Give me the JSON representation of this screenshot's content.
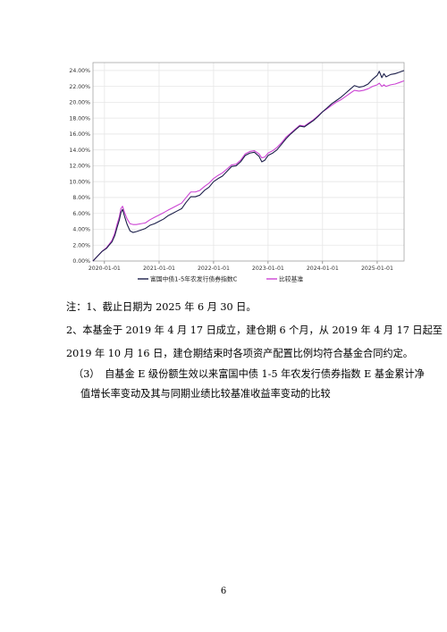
{
  "chart_data": {
    "type": "line",
    "title": "",
    "xlabel": "",
    "ylabel": "",
    "x_ticks": [
      "2020-01-01",
      "2021-01-01",
      "2022-01-01",
      "2023-01-01",
      "2024-01-01",
      "2025-01-01"
    ],
    "y_ticks": [
      "0.00%",
      "2.00%",
      "4.00%",
      "6.00%",
      "8.00%",
      "10.00%",
      "12.00%",
      "14.00%",
      "16.00%",
      "18.00%",
      "20.00%",
      "22.00%",
      "24.00%"
    ],
    "xlim": [
      "2019-10-16",
      "2025-06-30"
    ],
    "ylim": [
      0,
      25
    ],
    "grid": true,
    "legend_position": "bottom",
    "series": [
      {
        "name": "富国中债1-5年农发行债券指数C",
        "color": "#1c1f4a",
        "x": [
          "2019-10-16",
          "2019-11-15",
          "2019-12-15",
          "2020-01-15",
          "2020-02-01",
          "2020-02-20",
          "2020-03-10",
          "2020-03-25",
          "2020-04-10",
          "2020-04-20",
          "2020-05-01",
          "2020-05-15",
          "2020-06-01",
          "2020-06-20",
          "2020-07-10",
          "2020-08-01",
          "2020-09-01",
          "2020-10-01",
          "2020-11-01",
          "2020-12-01",
          "2021-01-01",
          "2021-02-01",
          "2021-03-01",
          "2021-04-01",
          "2021-05-01",
          "2021-06-01",
          "2021-07-01",
          "2021-08-01",
          "2021-09-01",
          "2021-10-01",
          "2021-11-01",
          "2021-12-01",
          "2022-01-01",
          "2022-02-01",
          "2022-03-01",
          "2022-04-01",
          "2022-05-01",
          "2022-06-01",
          "2022-07-01",
          "2022-08-01",
          "2022-09-01",
          "2022-10-01",
          "2022-11-01",
          "2022-11-20",
          "2022-12-10",
          "2023-01-01",
          "2023-02-01",
          "2023-03-01",
          "2023-04-01",
          "2023-05-01",
          "2023-06-01",
          "2023-07-01",
          "2023-08-01",
          "2023-09-01",
          "2023-10-01",
          "2023-11-01",
          "2023-12-01",
          "2024-01-01",
          "2024-02-01",
          "2024-03-01",
          "2024-04-01",
          "2024-05-01",
          "2024-06-01",
          "2024-07-01",
          "2024-08-01",
          "2024-09-01",
          "2024-10-01",
          "2024-11-01",
          "2024-12-01",
          "2025-01-01",
          "2025-01-15",
          "2025-02-01",
          "2025-02-15",
          "2025-03-01",
          "2025-04-01",
          "2025-05-01",
          "2025-06-01",
          "2025-06-30"
        ],
        "values": [
          0.0,
          0.6,
          1.2,
          1.6,
          2.0,
          2.4,
          3.2,
          4.2,
          5.2,
          6.1,
          6.5,
          5.6,
          4.6,
          3.8,
          3.6,
          3.7,
          3.9,
          4.1,
          4.5,
          4.7,
          5.0,
          5.3,
          5.7,
          6.0,
          6.3,
          6.6,
          7.4,
          8.1,
          8.1,
          8.3,
          8.9,
          9.3,
          10.0,
          10.4,
          10.7,
          11.3,
          11.9,
          12.0,
          12.5,
          13.3,
          13.6,
          13.7,
          13.2,
          12.5,
          12.7,
          13.3,
          13.6,
          14.0,
          14.7,
          15.4,
          16.0,
          16.5,
          17.0,
          16.9,
          17.3,
          17.7,
          18.2,
          18.8,
          19.3,
          19.8,
          20.2,
          20.6,
          21.1,
          21.6,
          22.1,
          21.9,
          22.0,
          22.3,
          22.9,
          23.4,
          23.9,
          23.1,
          23.6,
          23.2,
          23.5,
          23.6,
          23.8,
          24.0
        ]
      },
      {
        "name": "比较基准",
        "color": "#cc44d4",
        "x": [
          "2019-10-16",
          "2019-11-15",
          "2019-12-15",
          "2020-01-15",
          "2020-02-01",
          "2020-02-20",
          "2020-03-10",
          "2020-03-25",
          "2020-04-10",
          "2020-04-20",
          "2020-05-01",
          "2020-05-15",
          "2020-06-01",
          "2020-06-20",
          "2020-07-10",
          "2020-08-01",
          "2020-09-01",
          "2020-10-01",
          "2020-11-01",
          "2020-12-01",
          "2021-01-01",
          "2021-02-01",
          "2021-03-01",
          "2021-04-01",
          "2021-05-01",
          "2021-06-01",
          "2021-07-01",
          "2021-08-01",
          "2021-09-01",
          "2021-10-01",
          "2021-11-01",
          "2021-12-01",
          "2022-01-01",
          "2022-02-01",
          "2022-03-01",
          "2022-04-01",
          "2022-05-01",
          "2022-06-01",
          "2022-07-01",
          "2022-08-01",
          "2022-09-01",
          "2022-10-01",
          "2022-11-01",
          "2022-11-20",
          "2022-12-10",
          "2023-01-01",
          "2023-02-01",
          "2023-03-01",
          "2023-04-01",
          "2023-05-01",
          "2023-06-01",
          "2023-07-01",
          "2023-08-01",
          "2023-09-01",
          "2023-10-01",
          "2023-11-01",
          "2023-12-01",
          "2024-01-01",
          "2024-02-01",
          "2024-03-01",
          "2024-04-01",
          "2024-05-01",
          "2024-06-01",
          "2024-07-01",
          "2024-08-01",
          "2024-09-01",
          "2024-10-01",
          "2024-11-01",
          "2024-12-01",
          "2025-01-01",
          "2025-01-15",
          "2025-02-01",
          "2025-02-15",
          "2025-03-01",
          "2025-04-01",
          "2025-05-01",
          "2025-06-01",
          "2025-06-30"
        ],
        "values": [
          0.0,
          0.6,
          1.2,
          1.7,
          2.1,
          2.6,
          3.5,
          4.6,
          5.6,
          6.6,
          6.9,
          6.1,
          5.3,
          4.7,
          4.6,
          4.6,
          4.7,
          4.8,
          5.2,
          5.5,
          5.8,
          6.1,
          6.4,
          6.7,
          7.0,
          7.3,
          8.0,
          8.7,
          8.7,
          8.9,
          9.4,
          9.8,
          10.4,
          10.8,
          11.1,
          11.6,
          12.1,
          12.2,
          12.7,
          13.5,
          13.8,
          13.9,
          13.5,
          13.0,
          13.1,
          13.6,
          13.9,
          14.3,
          14.9,
          15.6,
          16.1,
          16.6,
          17.1,
          17.0,
          17.4,
          17.8,
          18.3,
          18.8,
          19.2,
          19.6,
          20.0,
          20.3,
          20.7,
          21.1,
          21.5,
          21.4,
          21.5,
          21.7,
          22.0,
          22.2,
          22.4,
          22.0,
          22.2,
          22.0,
          22.2,
          22.3,
          22.5,
          22.7
        ]
      }
    ]
  },
  "notes": {
    "note1": "注：1、截止日期为 2025 年 6 月 30 日。",
    "note2_line1": "2、本基金于 2019 年 4 月 17 日成立，建仓期 6 个月，从 2019 年 4 月 17 日起至",
    "note2_line2": "2019 年 10 月 16 日，建仓期结束时各项资产配置比例均符合基金合同约定。",
    "section3_line1": "（3）　自基金 E 级份额生效以来富国中债 1-5 年农发行债券指数 E 基金累计净",
    "section3_line2": "值增长率变动及其与同期业绩比较基准收益率变动的比较"
  },
  "page_number": "6"
}
